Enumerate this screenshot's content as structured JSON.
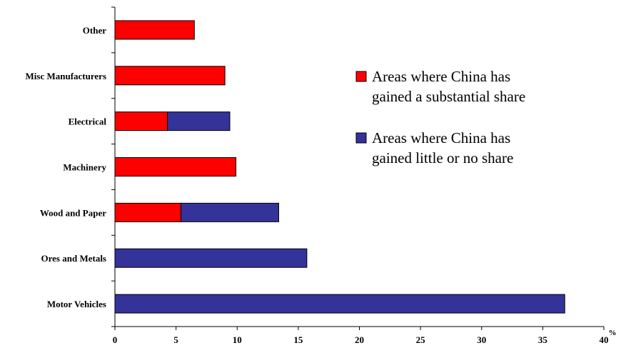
{
  "chart_data": {
    "type": "bar",
    "orientation": "horizontal",
    "stacked": true,
    "categories": [
      "Other",
      "Misc Manufacturers",
      "Electrical",
      "Machinery",
      "Wood and Paper",
      "Ores and Metals",
      "Motor Vehicles"
    ],
    "series": [
      {
        "name": "Areas where China has gained a substantial share",
        "legend_lines": [
          "Areas where China has",
          "gained a substantial share"
        ],
        "color": "#ff0000",
        "values": [
          6.5,
          9.0,
          4.3,
          9.9,
          5.4,
          0,
          0
        ]
      },
      {
        "name": "Areas where China has gained little or no share",
        "legend_lines": [
          "Areas where China has",
          "gained little or no share"
        ],
        "color": "#333399",
        "values": [
          0,
          0,
          5.1,
          0,
          8.0,
          15.7,
          36.8
        ]
      }
    ],
    "xlim": [
      0,
      40
    ],
    "xticks": [
      0,
      5,
      10,
      15,
      20,
      25,
      30,
      35,
      40
    ],
    "xunit": "%",
    "grid": false,
    "legend_position": "right"
  }
}
